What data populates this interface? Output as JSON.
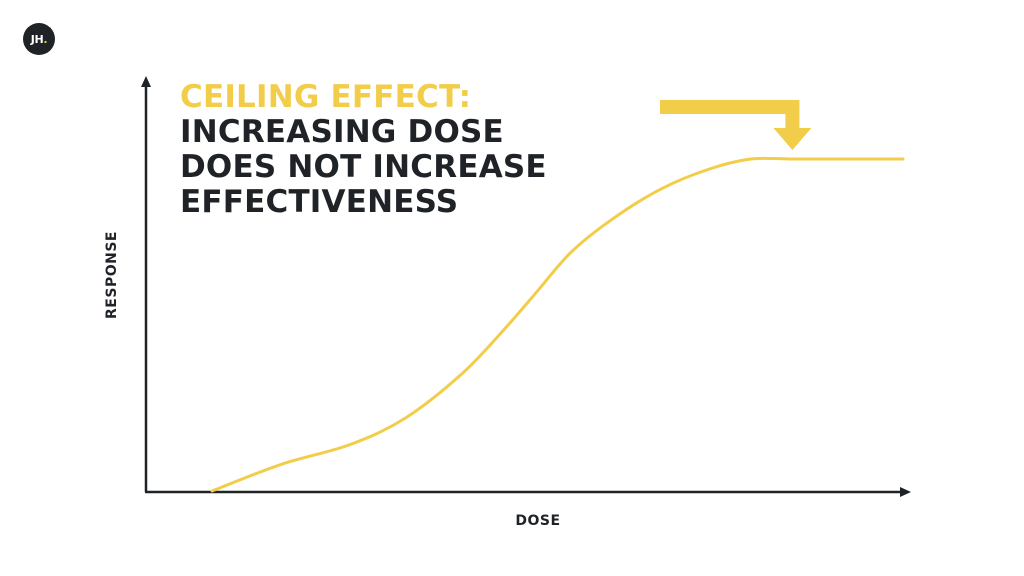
{
  "brand": {
    "logo_text": "JH",
    "logo_dot": "."
  },
  "headline": {
    "accent": "CEILING EFFECT:",
    "lines": [
      "INCREASING DOSE",
      "DOES NOT INCREASE",
      "EFFECTIVENESS"
    ]
  },
  "colors": {
    "accent": "#f2cd4a",
    "text": "#1f2327"
  },
  "chart_data": {
    "type": "line",
    "title": "CEILING EFFECT: INCREASING DOSE DOES NOT INCREASE EFFECTIVENESS",
    "xlabel": "DOSE",
    "ylabel": "RESPONSE",
    "x_ticks": [],
    "y_ticks": [],
    "xlim": [
      0,
      100
    ],
    "ylim": [
      0,
      100
    ],
    "grid": false,
    "legend": "none",
    "annotations": [
      {
        "type": "arrow",
        "shape": "bent-down",
        "points_to": "plateau",
        "x": 84,
        "y": 100
      }
    ],
    "series": [
      {
        "color": "#f2cd4a",
        "x": [
          0,
          10,
          20,
          28,
          36,
          42,
          47,
          52,
          58,
          65,
          72,
          78,
          84,
          90,
          100
        ],
        "y": [
          0,
          8,
          14,
          22,
          35,
          48,
          60,
          72,
          82,
          91,
          97,
          100,
          100,
          100,
          100
        ]
      }
    ]
  }
}
